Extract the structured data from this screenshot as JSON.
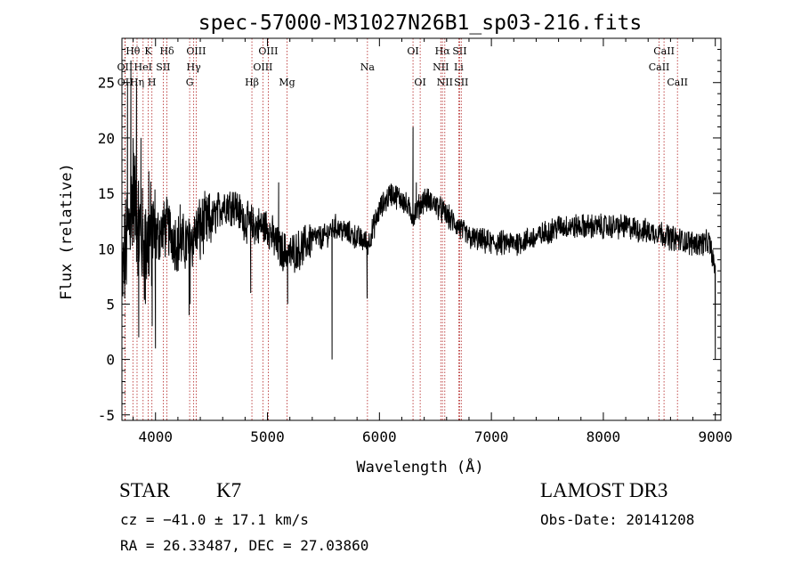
{
  "chart_data": {
    "type": "line",
    "title": "spec-57000-M31027N26B1_sp03-216.fits",
    "xlabel": "Wavelength (Å)",
    "ylabel": "Flux (relative)",
    "xlim": [
      3700,
      9050
    ],
    "ylim": [
      -5.5,
      29
    ],
    "x_ticks": [
      4000,
      5000,
      6000,
      7000,
      8000,
      9000
    ],
    "y_ticks": [
      -5,
      0,
      5,
      10,
      15,
      20,
      25
    ],
    "grid": false,
    "continuum_anchors": [
      [
        3700,
        7
      ],
      [
        3760,
        12
      ],
      [
        3800,
        15
      ],
      [
        3850,
        12
      ],
      [
        3900,
        10
      ],
      [
        3950,
        11
      ],
      [
        4000,
        11
      ],
      [
        4100,
        12
      ],
      [
        4200,
        10.5
      ],
      [
        4300,
        10.5
      ],
      [
        4400,
        12
      ],
      [
        4500,
        12.5
      ],
      [
        4600,
        14
      ],
      [
        4700,
        14
      ],
      [
        4800,
        12.5
      ],
      [
        4900,
        12
      ],
      [
        5000,
        12
      ],
      [
        5100,
        10
      ],
      [
        5200,
        9.5
      ],
      [
        5300,
        10
      ],
      [
        5400,
        11
      ],
      [
        5500,
        11
      ],
      [
        5600,
        12
      ],
      [
        5700,
        11.5
      ],
      [
        5800,
        11
      ],
      [
        5900,
        10.5
      ],
      [
        5950,
        12
      ],
      [
        6000,
        13.5
      ],
      [
        6100,
        15
      ],
      [
        6200,
        14.5
      ],
      [
        6300,
        13
      ],
      [
        6400,
        14.5
      ],
      [
        6500,
        14
      ],
      [
        6600,
        13
      ],
      [
        6700,
        12
      ],
      [
        6800,
        11
      ],
      [
        7000,
        10.5
      ],
      [
        7200,
        10.5
      ],
      [
        7400,
        11
      ],
      [
        7600,
        12
      ],
      [
        7800,
        12
      ],
      [
        8000,
        12
      ],
      [
        8200,
        12
      ],
      [
        8400,
        11.5
      ],
      [
        8500,
        11.5
      ],
      [
        8600,
        11
      ],
      [
        8800,
        10.5
      ],
      [
        8950,
        10.5
      ],
      [
        9000,
        8
      ]
    ],
    "spikes": [
      [
        3750,
        25
      ],
      [
        3780,
        27
      ],
      [
        3800,
        20
      ],
      [
        3830,
        25
      ],
      [
        3850,
        2
      ],
      [
        3870,
        20
      ],
      [
        3910,
        5
      ],
      [
        3940,
        17
      ],
      [
        3970,
        3
      ],
      [
        4000,
        1
      ],
      [
        4220,
        14
      ],
      [
        4300,
        4
      ],
      [
        4310,
        5
      ],
      [
        4350,
        11
      ],
      [
        4400,
        9
      ],
      [
        4850,
        6
      ],
      [
        5100,
        16
      ],
      [
        5180,
        5
      ],
      [
        5577,
        0
      ],
      [
        5890,
        5.5
      ],
      [
        6300,
        21
      ],
      [
        6330,
        16
      ],
      [
        6560,
        14.5
      ],
      [
        6720,
        12.5
      ],
      [
        9000,
        0
      ]
    ],
    "lines": [
      {
        "label": "Hθ",
        "wavelength": 3798,
        "row": 0
      },
      {
        "label": "OII",
        "wavelength": 3727,
        "row": 1
      },
      {
        "label": "OII",
        "wavelength": 3729,
        "row": 2
      },
      {
        "label": "K",
        "wavelength": 3934,
        "row": 0
      },
      {
        "label": "HeI",
        "wavelength": 3889,
        "row": 1
      },
      {
        "label": "Hη",
        "wavelength": 3835,
        "row": 2
      },
      {
        "label": "Hδ",
        "wavelength": 4102,
        "row": 0
      },
      {
        "label": "SII",
        "wavelength": 4069,
        "row": 1
      },
      {
        "label": "H",
        "wavelength": 3968,
        "row": 2
      },
      {
        "label": "OIII",
        "wavelength": 4363,
        "row": 0
      },
      {
        "label": "Hγ",
        "wavelength": 4341,
        "row": 1
      },
      {
        "label": "G",
        "wavelength": 4305,
        "row": 2
      },
      {
        "label": "OIII",
        "wavelength": 5007,
        "row": 0
      },
      {
        "label": "OIII",
        "wavelength": 4959,
        "row": 1
      },
      {
        "label": "Hβ",
        "wavelength": 4861,
        "row": 2
      },
      {
        "label": "Mg",
        "wavelength": 5175,
        "row": 2
      },
      {
        "label": "Na",
        "wavelength": 5893,
        "row": 1
      },
      {
        "label": "OI",
        "wavelength": 6300,
        "row": 0
      },
      {
        "label": "OI",
        "wavelength": 6364,
        "row": 2
      },
      {
        "label": "Hα",
        "wavelength": 6563,
        "row": 0
      },
      {
        "label": "NII",
        "wavelength": 6548,
        "row": 1
      },
      {
        "label": "NII",
        "wavelength": 6584,
        "row": 2
      },
      {
        "label": "SII",
        "wavelength": 6717,
        "row": 0
      },
      {
        "label": "Li",
        "wavelength": 6708,
        "row": 1
      },
      {
        "label": "SII",
        "wavelength": 6731,
        "row": 2
      },
      {
        "label": "CaII",
        "wavelength": 8542,
        "row": 0
      },
      {
        "label": "CaII",
        "wavelength": 8498,
        "row": 1
      },
      {
        "label": "CaII",
        "wavelength": 8662,
        "row": 2
      }
    ]
  },
  "info": {
    "class_label": "STAR",
    "subclass": "K7",
    "survey": "LAMOST DR3",
    "cz": "cz = −41.0 ± 17.1 km/s",
    "obs_date": "Obs-Date: 20141208",
    "coords": "RA =  26.33487, DEC =  27.03860"
  }
}
